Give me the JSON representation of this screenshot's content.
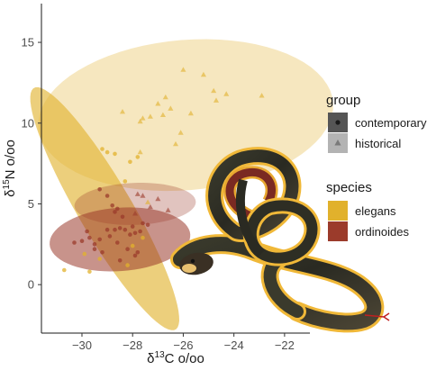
{
  "chart_data": {
    "type": "scatter",
    "title": "",
    "xlabel_symbol": "δ",
    "xlabel_sup": "13",
    "xlabel_rest": "C o/oo",
    "ylabel_symbol": "δ",
    "ylabel_sup": "15",
    "ylabel_rest": "N o/oo",
    "xlim": [
      -31.6,
      -21.0
    ],
    "ylim": [
      -3.0,
      17.4
    ],
    "x_ticks": [
      -30,
      -28,
      -26,
      -24,
      -22
    ],
    "x_tick_labels": [
      "−30",
      "−28",
      "−26",
      "−24",
      "−22"
    ],
    "y_ticks": [
      0,
      5,
      10,
      15
    ],
    "y_tick_labels": [
      "0",
      "5",
      "10",
      "15"
    ],
    "grid": false,
    "legend_placement": "right",
    "colors": {
      "elegans": "#e1b12c",
      "ordinoides": "#9b3b2b",
      "legend_key_dark": "#555555",
      "legend_key_light": "#b3b3b3"
    },
    "legends": [
      {
        "title": "group",
        "entries": [
          {
            "label": "contemporary",
            "shape": "circle"
          },
          {
            "label": "historical",
            "shape": "triangle"
          }
        ]
      },
      {
        "title": "species",
        "entries": [
          {
            "label": "elegans",
            "color": "#e1b12c"
          },
          {
            "label": "ordinoides",
            "color": "#9b3b2b"
          }
        ]
      }
    ],
    "ellipses": [
      {
        "species": "elegans",
        "group": "historical",
        "cx": -25.9,
        "cy": 10.5,
        "rx": 5.9,
        "ry": 4.6,
        "angle_deg": 15,
        "opacity": 0.3
      },
      {
        "species": "elegans",
        "group": "contemporary",
        "cx": -29.1,
        "cy": 4.7,
        "rx": 8.0,
        "ry": 1.15,
        "angle_deg": -70,
        "opacity": 0.62
      },
      {
        "species": "ordinoides",
        "group": "historical",
        "cx": -27.9,
        "cy": 5.0,
        "rx": 2.4,
        "ry": 1.3,
        "angle_deg": 4,
        "opacity": 0.3
      },
      {
        "species": "ordinoides",
        "group": "contemporary",
        "cx": -28.5,
        "cy": 2.8,
        "rx": 2.8,
        "ry": 1.95,
        "angle_deg": 10,
        "opacity": 0.55
      }
    ],
    "series": [
      {
        "species": "elegans",
        "group": "historical",
        "marker": "triangle",
        "points": [
          [
            -26.0,
            13.3
          ],
          [
            -25.2,
            13.0
          ],
          [
            -24.8,
            12.0
          ],
          [
            -24.7,
            11.4
          ],
          [
            -22.9,
            11.7
          ],
          [
            -24.3,
            11.8
          ],
          [
            -26.7,
            11.6
          ],
          [
            -27.0,
            11.2
          ],
          [
            -26.5,
            10.9
          ],
          [
            -26.8,
            10.5
          ],
          [
            -27.3,
            10.4
          ],
          [
            -25.7,
            10.6
          ],
          [
            -27.7,
            10.1
          ],
          [
            -27.6,
            10.3
          ],
          [
            -26.1,
            9.4
          ],
          [
            -26.3,
            8.7
          ],
          [
            -27.7,
            8.2
          ],
          [
            -28.4,
            10.7
          ],
          [
            -27.4,
            5.1
          ]
        ]
      },
      {
        "species": "elegans",
        "group": "contemporary",
        "marker": "circle",
        "points": [
          [
            -28.7,
            8.1
          ],
          [
            -29.2,
            8.4
          ],
          [
            -29.0,
            8.2
          ],
          [
            -28.1,
            7.6
          ],
          [
            -27.8,
            7.9
          ],
          [
            -28.3,
            6.4
          ],
          [
            -30.7,
            0.9
          ],
          [
            -29.7,
            0.8
          ],
          [
            -29.9,
            1.9
          ],
          [
            -29.3,
            1.6
          ],
          [
            -28.2,
            1.2
          ],
          [
            -28.0,
            2.4
          ],
          [
            -27.6,
            2.9
          ]
        ]
      },
      {
        "species": "ordinoides",
        "group": "historical",
        "marker": "triangle",
        "points": [
          [
            -27.8,
            5.6
          ],
          [
            -27.6,
            5.5
          ],
          [
            -27.0,
            5.3
          ],
          [
            -26.6,
            4.6
          ],
          [
            -27.3,
            4.8
          ],
          [
            -27.9,
            4.4
          ]
        ]
      },
      {
        "species": "ordinoides",
        "group": "contemporary",
        "marker": "circle",
        "points": [
          [
            -29.3,
            5.9
          ],
          [
            -29.0,
            5.5
          ],
          [
            -28.8,
            4.9
          ],
          [
            -28.6,
            4.7
          ],
          [
            -28.7,
            4.5
          ],
          [
            -28.4,
            4.2
          ],
          [
            -29.8,
            3.3
          ],
          [
            -30.3,
            2.6
          ],
          [
            -30.0,
            2.7
          ],
          [
            -29.7,
            2.9
          ],
          [
            -29.5,
            2.5
          ],
          [
            -29.3,
            2.8
          ],
          [
            -29.2,
            2.0
          ],
          [
            -29.0,
            3.4
          ],
          [
            -28.9,
            3.0
          ],
          [
            -28.7,
            3.4
          ],
          [
            -28.5,
            3.5
          ],
          [
            -28.3,
            3.4
          ],
          [
            -28.1,
            3.1
          ],
          [
            -28.0,
            3.6
          ],
          [
            -27.9,
            3.2
          ],
          [
            -27.7,
            3.3
          ],
          [
            -27.6,
            3.8
          ],
          [
            -27.4,
            3.7
          ],
          [
            -28.6,
            2.6
          ],
          [
            -28.2,
            2.2
          ],
          [
            -27.8,
            2.0
          ],
          [
            -28.5,
            1.5
          ],
          [
            -27.9,
            1.8
          ],
          [
            -29.5,
            2.2
          ]
        ]
      }
    ]
  }
}
